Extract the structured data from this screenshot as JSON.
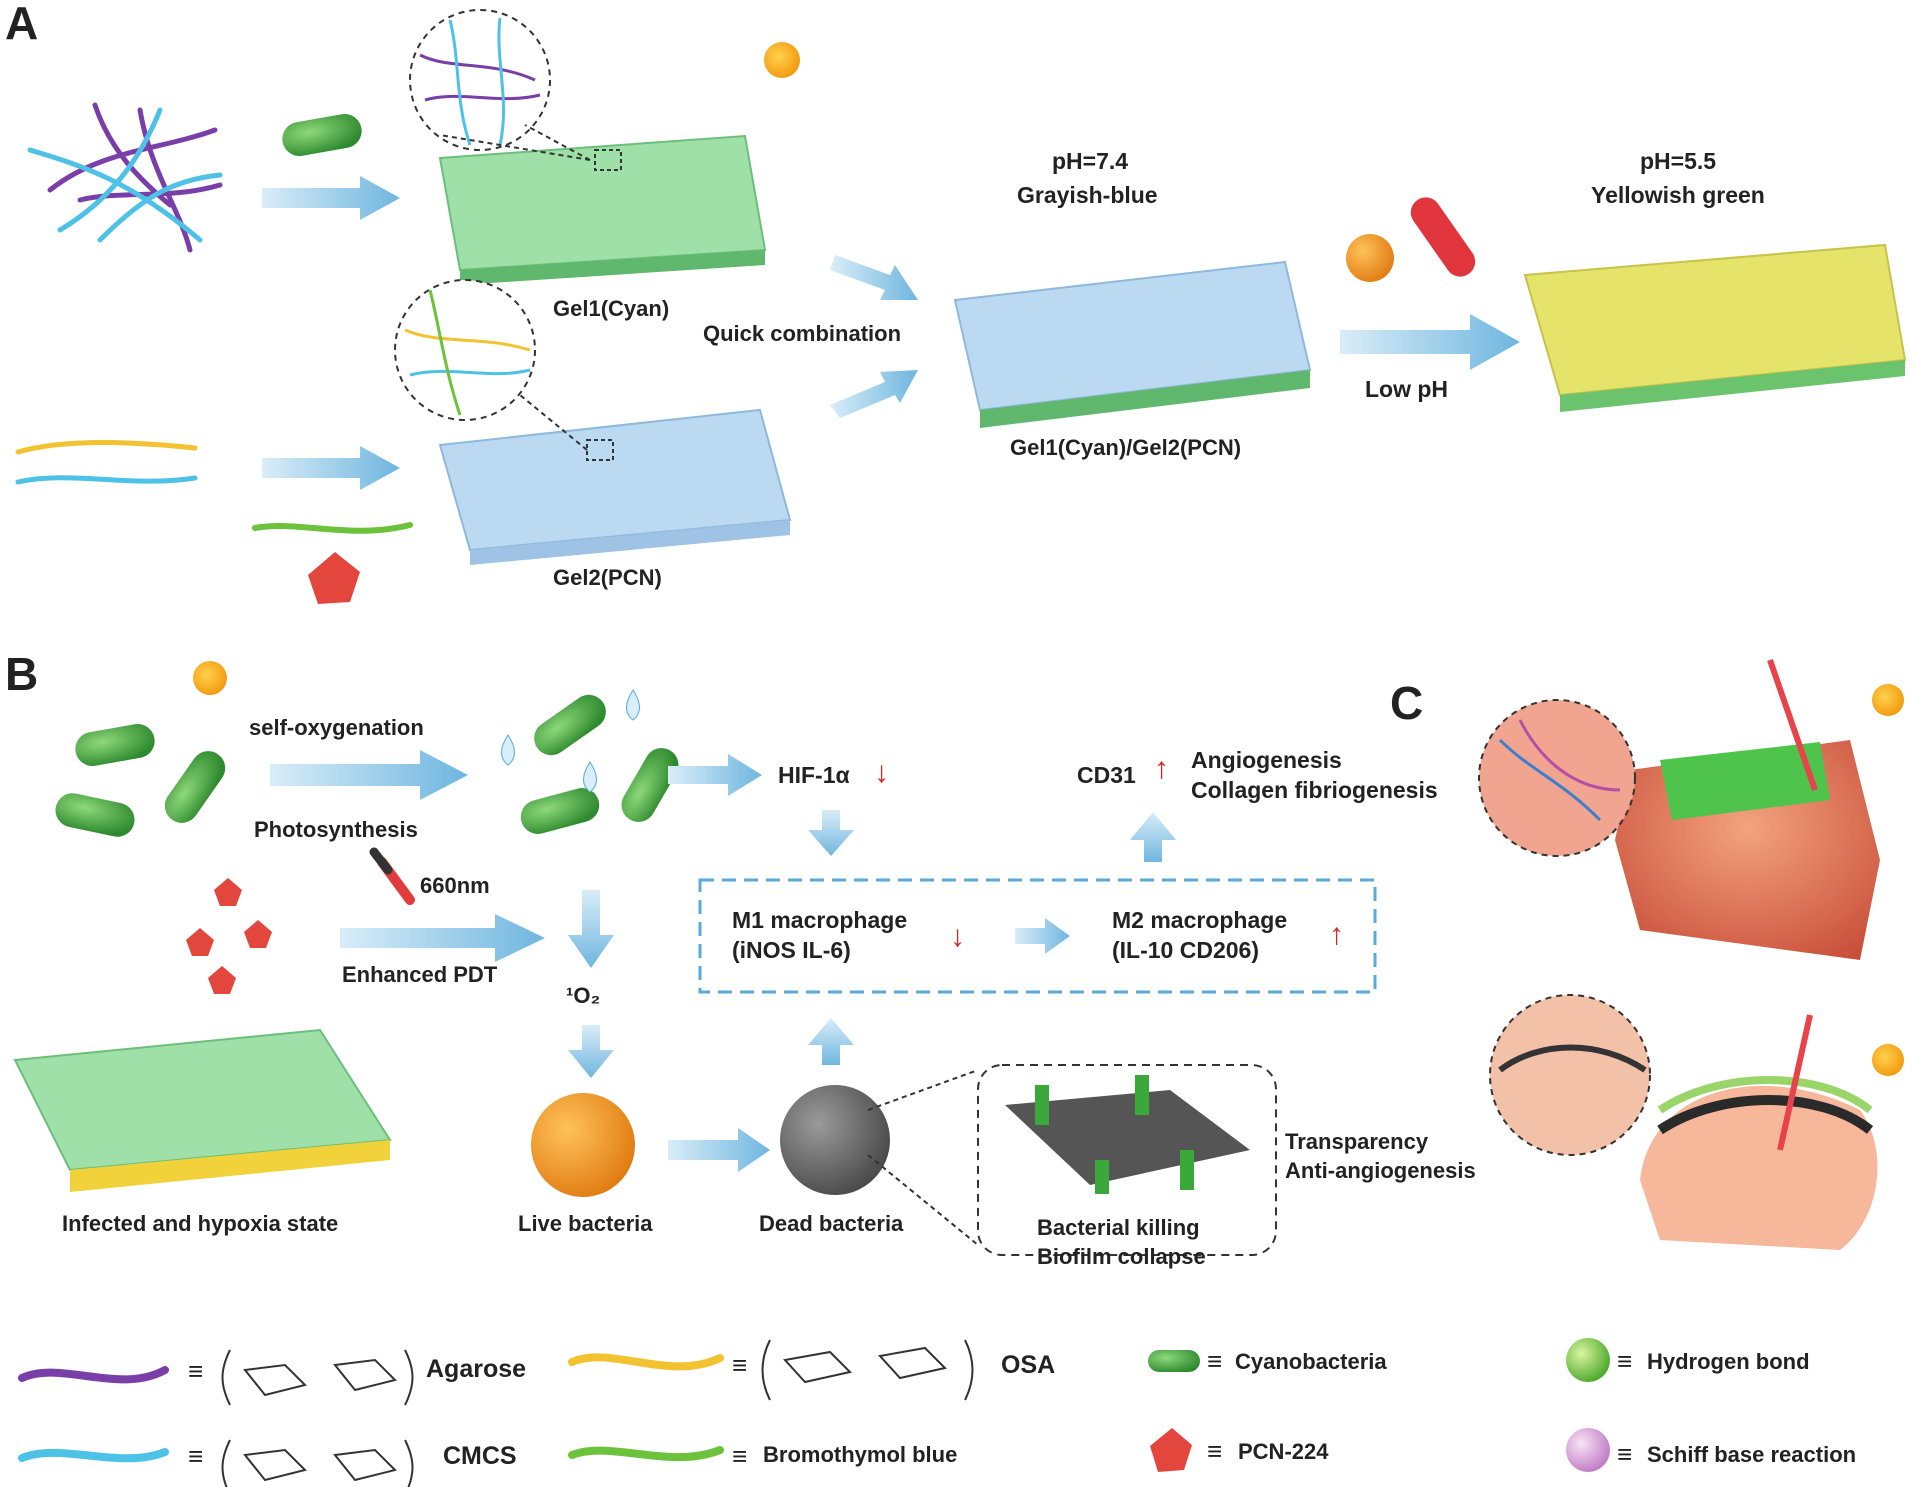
{
  "panels": {
    "a": "A",
    "b": "B",
    "c": "C"
  },
  "panel_a": {
    "gel1_label": "Gel1(Cyan)",
    "gel2_label": "Gel2(PCN)",
    "quick_combination": "Quick combination",
    "combined_label": "Gel1(Cyan)/Gel2(PCN)",
    "ph74_value": "pH=7.4",
    "ph74_color": "Grayish-blue",
    "ph55_value": "pH=5.5",
    "ph55_color": "Yellowish green",
    "low_ph": "Low pH"
  },
  "panel_b": {
    "self_oxygenation": "self-oxygenation",
    "photosynthesis": "Photosynthesis",
    "laser_wavelength": "660nm",
    "enhanced_pdt": "Enhanced PDT",
    "singlet_oxygen": "¹O₂",
    "hif": "HIF-1α",
    "cd31": "CD31",
    "angiogenesis": "Angiogenesis",
    "collagen": "Collagen fibriogenesis",
    "m1_title": "M1 macrophage",
    "m1_markers": "(iNOS  IL-6)",
    "m2_title": "M2 macrophage",
    "m2_markers": "(IL-10  CD206)",
    "infected_state": "Infected and hypoxia state",
    "live_bacteria": "Live bacteria",
    "dead_bacteria": "Dead bacteria",
    "bacterial_killing": "Bacterial killing",
    "biofilm_collapse": "Biofilm collapse",
    "transparency": "Transparency",
    "anti_angiogenesis": "Anti-angiogenesis",
    "down_arrow": "↓",
    "up_arrow": "↑"
  },
  "legend": {
    "equiv": "≡",
    "agarose": "Agarose",
    "cmcs": "CMCS",
    "osa": "OSA",
    "bromothymol": "Bromothymol blue",
    "cyanobacteria": "Cyanobacteria",
    "pcn224": "PCN-224",
    "hydrogen_bond": "Hydrogen bond",
    "schiff_base": "Schiff base reaction"
  },
  "colors": {
    "agarose": "#7a3ea8",
    "cmcs": "#4ec2e6",
    "osa": "#f2c230",
    "bromothymol": "#6cc23a",
    "cyan_gel": "#8fd9a0",
    "pcn_gel": "#b9d8f0",
    "arrow": "#8cc6e6",
    "red_arrow": "#d9251c",
    "sun": "#f7b117"
  }
}
